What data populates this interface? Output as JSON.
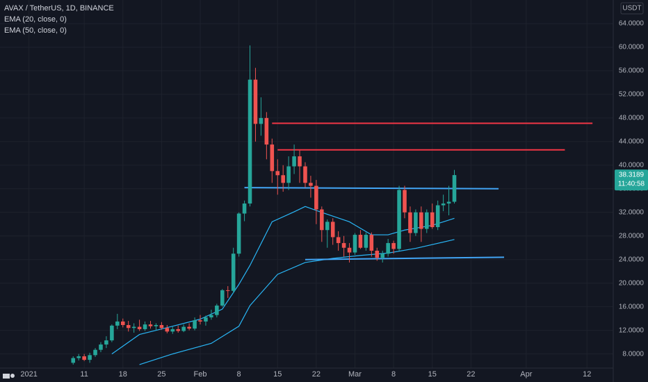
{
  "chart_data": {
    "type": "candlestick",
    "title": "AVAX / TetherUS, 1D, BINANCE",
    "currency": "USDT",
    "countdown": "11:40:58",
    "up_color": "#26a69a",
    "down_color": "#ef5350",
    "grid": true,
    "xlim": [
      "2020-12-26",
      "2021-04-16"
    ],
    "ylim": [
      5.6,
      68
    ],
    "yticks": [
      {
        "value": 8,
        "label": "8.0000"
      },
      {
        "value": 12,
        "label": "12.0000"
      },
      {
        "value": 16,
        "label": "16.0000"
      },
      {
        "value": 20,
        "label": "20.0000"
      },
      {
        "value": 24,
        "label": "24.0000"
      },
      {
        "value": 28,
        "label": "28.0000"
      },
      {
        "value": 32,
        "label": "32.0000"
      },
      {
        "value": 36,
        "label": "36.0000"
      },
      {
        "value": 40,
        "label": "40.0000"
      },
      {
        "value": 44,
        "label": "44.0000"
      },
      {
        "value": 48,
        "label": "48.0000"
      },
      {
        "value": 52,
        "label": "52.0000"
      },
      {
        "value": 56,
        "label": "56.0000"
      },
      {
        "value": 60,
        "label": "60.0000"
      },
      {
        "value": 64,
        "label": "64.0000"
      }
    ],
    "xticks": [
      {
        "value": "2021-01-01",
        "label": "2021"
      },
      {
        "value": "2021-01-11",
        "label": "11"
      },
      {
        "value": "2021-01-18",
        "label": "18"
      },
      {
        "value": "2021-01-25",
        "label": "25"
      },
      {
        "value": "2021-02-01",
        "label": "Feb"
      },
      {
        "value": "2021-02-08",
        "label": "8"
      },
      {
        "value": "2021-02-15",
        "label": "15"
      },
      {
        "value": "2021-02-22",
        "label": "22"
      },
      {
        "value": "2021-03-01",
        "label": "Mar"
      },
      {
        "value": "2021-03-08",
        "label": "8"
      },
      {
        "value": "2021-03-15",
        "label": "15"
      },
      {
        "value": "2021-03-22",
        "label": "22"
      },
      {
        "value": "2021-04-01",
        "label": "Apr"
      },
      {
        "value": "2021-04-12",
        "label": "12"
      }
    ],
    "x": [
      "2021-01-09",
      "2021-01-10",
      "2021-01-11",
      "2021-01-12",
      "2021-01-13",
      "2021-01-14",
      "2021-01-15",
      "2021-01-16",
      "2021-01-17",
      "2021-01-18",
      "2021-01-19",
      "2021-01-20",
      "2021-01-21",
      "2021-01-22",
      "2021-01-23",
      "2021-01-24",
      "2021-01-25",
      "2021-01-26",
      "2021-01-27",
      "2021-01-28",
      "2021-01-29",
      "2021-01-30",
      "2021-01-31",
      "2021-02-01",
      "2021-02-02",
      "2021-02-03",
      "2021-02-04",
      "2021-02-05",
      "2021-02-06",
      "2021-02-07",
      "2021-02-08",
      "2021-02-09",
      "2021-02-10",
      "2021-02-11",
      "2021-02-12",
      "2021-02-13",
      "2021-02-14",
      "2021-02-15",
      "2021-02-16",
      "2021-02-17",
      "2021-02-18",
      "2021-02-19",
      "2021-02-20",
      "2021-02-21",
      "2021-02-22",
      "2021-02-23",
      "2021-02-24",
      "2021-02-25",
      "2021-02-26",
      "2021-02-27",
      "2021-02-28",
      "2021-03-01",
      "2021-03-02",
      "2021-03-03",
      "2021-03-04",
      "2021-03-05",
      "2021-03-06",
      "2021-03-07",
      "2021-03-08",
      "2021-03-09",
      "2021-03-10",
      "2021-03-11",
      "2021-03-12",
      "2021-03-13",
      "2021-03-14",
      "2021-03-15",
      "2021-03-16",
      "2021-03-17",
      "2021-03-18",
      "2021-03-19"
    ],
    "open": [
      6.5,
      7.3,
      7.6,
      7.0,
      7.8,
      8.7,
      9.6,
      10.3,
      12.8,
      13.5,
      12.9,
      12.4,
      12.6,
      12.2,
      13.0,
      12.7,
      12.9,
      12.4,
      11.8,
      12.2,
      11.9,
      12.6,
      12.3,
      13.7,
      13.5,
      14.2,
      14.6,
      16.2,
      18.8,
      18.7,
      25.0,
      31.8,
      33.5,
      54.5,
      47.0,
      48.0,
      43.5,
      39.0,
      38.3,
      37.0,
      39.8,
      41.5,
      39.8,
      37.0,
      36.5,
      32.5,
      29.0,
      30.4,
      27.8,
      26.8,
      26.0,
      25.2,
      28.2,
      26.0,
      28.2,
      25.5,
      24.3,
      25.0,
      26.8,
      25.8,
      35.8,
      32.0,
      28.5,
      32.0,
      29.2,
      32.0,
      29.5,
      33.2,
      33.5,
      33.8
    ],
    "high": [
      7.6,
      8.0,
      8.0,
      8.2,
      9.0,
      10.0,
      11.0,
      13.0,
      14.8,
      14.0,
      13.6,
      13.2,
      13.8,
      13.5,
      13.6,
      13.2,
      13.4,
      12.9,
      12.6,
      12.8,
      13.0,
      13.2,
      14.2,
      14.6,
      14.5,
      15.5,
      16.5,
      19.0,
      19.5,
      26.0,
      32.0,
      34.0,
      60.3,
      56.5,
      51.5,
      49.0,
      44.5,
      41.0,
      40.0,
      41.5,
      43.5,
      42.5,
      40.5,
      38.2,
      37.5,
      33.0,
      30.8,
      31.0,
      28.8,
      28.0,
      26.8,
      28.5,
      29.0,
      28.6,
      28.6,
      26.0,
      25.5,
      27.5,
      27.2,
      36.5,
      36.5,
      33.0,
      32.5,
      33.0,
      32.5,
      33.5,
      34.0,
      35.0,
      36.5,
      39.2
    ],
    "low": [
      6.2,
      6.9,
      6.8,
      6.5,
      7.5,
      8.3,
      9.0,
      10.0,
      12.2,
      12.5,
      11.8,
      11.6,
      11.9,
      11.9,
      12.3,
      12.0,
      12.1,
      11.5,
      11.4,
      11.6,
      11.7,
      12.0,
      12.0,
      13.0,
      12.8,
      13.8,
      14.2,
      16.0,
      17.5,
      18.3,
      24.5,
      30.5,
      33.0,
      44.0,
      45.0,
      41.0,
      37.0,
      35.0,
      35.5,
      35.8,
      38.5,
      37.0,
      36.2,
      34.5,
      30.0,
      27.0,
      26.0,
      26.5,
      25.5,
      24.5,
      23.5,
      24.8,
      25.8,
      25.5,
      24.5,
      23.8,
      23.5,
      24.5,
      25.0,
      25.5,
      31.0,
      27.0,
      28.0,
      27.0,
      28.5,
      29.2,
      29.0,
      32.2,
      31.5,
      33.5
    ],
    "close": [
      7.3,
      7.6,
      7.0,
      7.8,
      8.7,
      9.6,
      10.3,
      12.8,
      13.5,
      12.9,
      12.4,
      12.6,
      12.2,
      13.0,
      12.7,
      12.9,
      12.4,
      11.8,
      12.2,
      11.9,
      12.6,
      12.3,
      13.7,
      13.5,
      14.2,
      14.6,
      16.2,
      18.8,
      18.7,
      25.0,
      31.8,
      33.5,
      54.5,
      47.0,
      48.0,
      43.5,
      39.0,
      38.3,
      37.0,
      39.8,
      41.5,
      39.8,
      37.0,
      36.5,
      32.5,
      29.0,
      30.4,
      27.8,
      26.8,
      26.0,
      25.2,
      28.2,
      26.0,
      28.2,
      25.5,
      24.3,
      25.0,
      26.8,
      25.8,
      35.8,
      32.0,
      28.5,
      32.0,
      29.2,
      32.0,
      29.5,
      33.2,
      33.5,
      33.8,
      38.3189
    ],
    "series": [
      {
        "name": "EMA (20, close, 0)",
        "color": "#29b6f6",
        "x": [
          "2021-01-16",
          "2021-01-21",
          "2021-01-27",
          "2021-02-01",
          "2021-02-05",
          "2021-02-08",
          "2021-02-10",
          "2021-02-14",
          "2021-02-18",
          "2021-02-20",
          "2021-02-23",
          "2021-02-28",
          "2021-03-04",
          "2021-03-07",
          "2021-03-10",
          "2021-03-15",
          "2021-03-19"
        ],
        "values": [
          8,
          11.3,
          12.7,
          13.9,
          15.6,
          19.8,
          23,
          30.4,
          32.1,
          33,
          32,
          30.4,
          28.2,
          28.2,
          29,
          29.8,
          31
        ]
      },
      {
        "name": "EMA (50, close, 0)",
        "color": "#29b6f6",
        "x": [
          "2021-01-21",
          "2021-01-27",
          "2021-02-03",
          "2021-02-08",
          "2021-02-10",
          "2021-02-15",
          "2021-02-20",
          "2021-02-25",
          "2021-03-02",
          "2021-03-07",
          "2021-03-12",
          "2021-03-19"
        ],
        "values": [
          6.2,
          8,
          9.8,
          12.7,
          16.2,
          21.5,
          23.5,
          24.2,
          24.7,
          25.1,
          25.9,
          27.4
        ]
      }
    ],
    "trend_lines": [
      {
        "color": "#f23645",
        "x": [
          "2021-02-14",
          "2021-04-13"
        ],
        "values": [
          47.1,
          47.1
        ]
      },
      {
        "color": "#f23645",
        "x": [
          "2021-02-15",
          "2021-04-08"
        ],
        "values": [
          42.6,
          42.6
        ]
      },
      {
        "color": "#42a5f5",
        "x": [
          "2021-02-09",
          "2021-03-27"
        ],
        "values": [
          36.2,
          36.0
        ]
      },
      {
        "color": "#42a5f5",
        "x": [
          "2021-02-20",
          "2021-03-28"
        ],
        "values": [
          24.0,
          24.4
        ]
      }
    ]
  }
}
